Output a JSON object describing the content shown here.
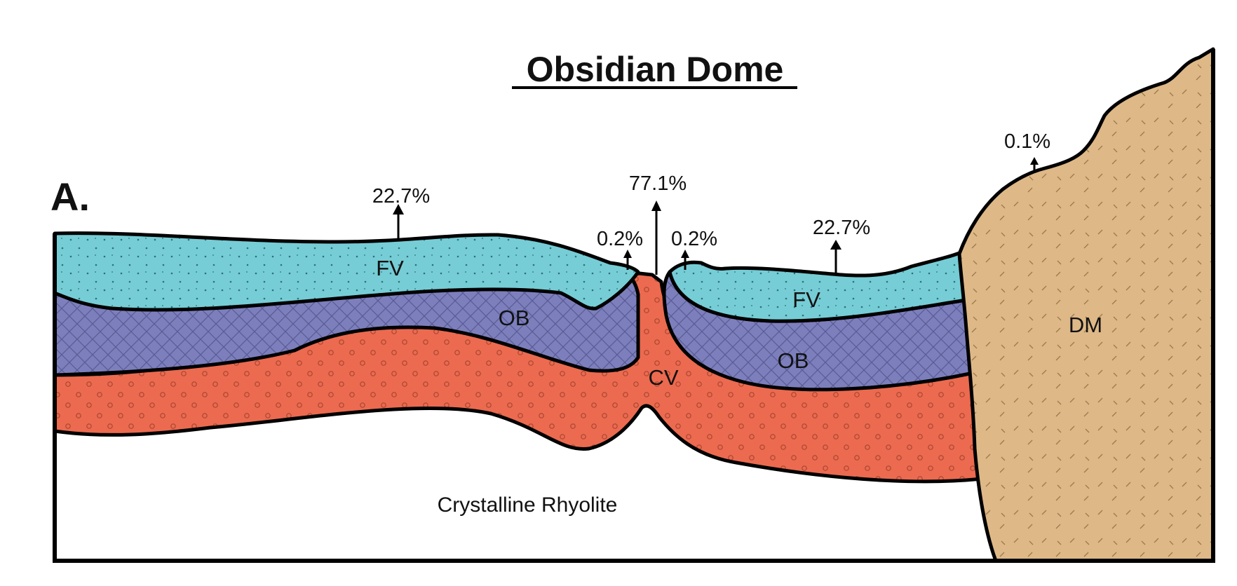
{
  "title": "Obsidian Dome",
  "panel_label": "A.",
  "units": {
    "fv_left": "FV",
    "fv_right": "FV",
    "ob_left": "OB",
    "ob_right": "OB",
    "cv": "CV",
    "dm": "DM",
    "base": "Crystalline Rhyolite"
  },
  "percentages": {
    "fv_left": "22.7%",
    "fv_right": "22.7%",
    "cv_top": "77.1%",
    "ob_left": "0.2%",
    "ob_right": "0.2%",
    "dm_top": "0.1%"
  },
  "colors": {
    "fv": "#76cdd6",
    "ob": "#7d7fbd",
    "cv": "#ec6a4f",
    "dm": "#deb887",
    "outline": "#000000"
  }
}
